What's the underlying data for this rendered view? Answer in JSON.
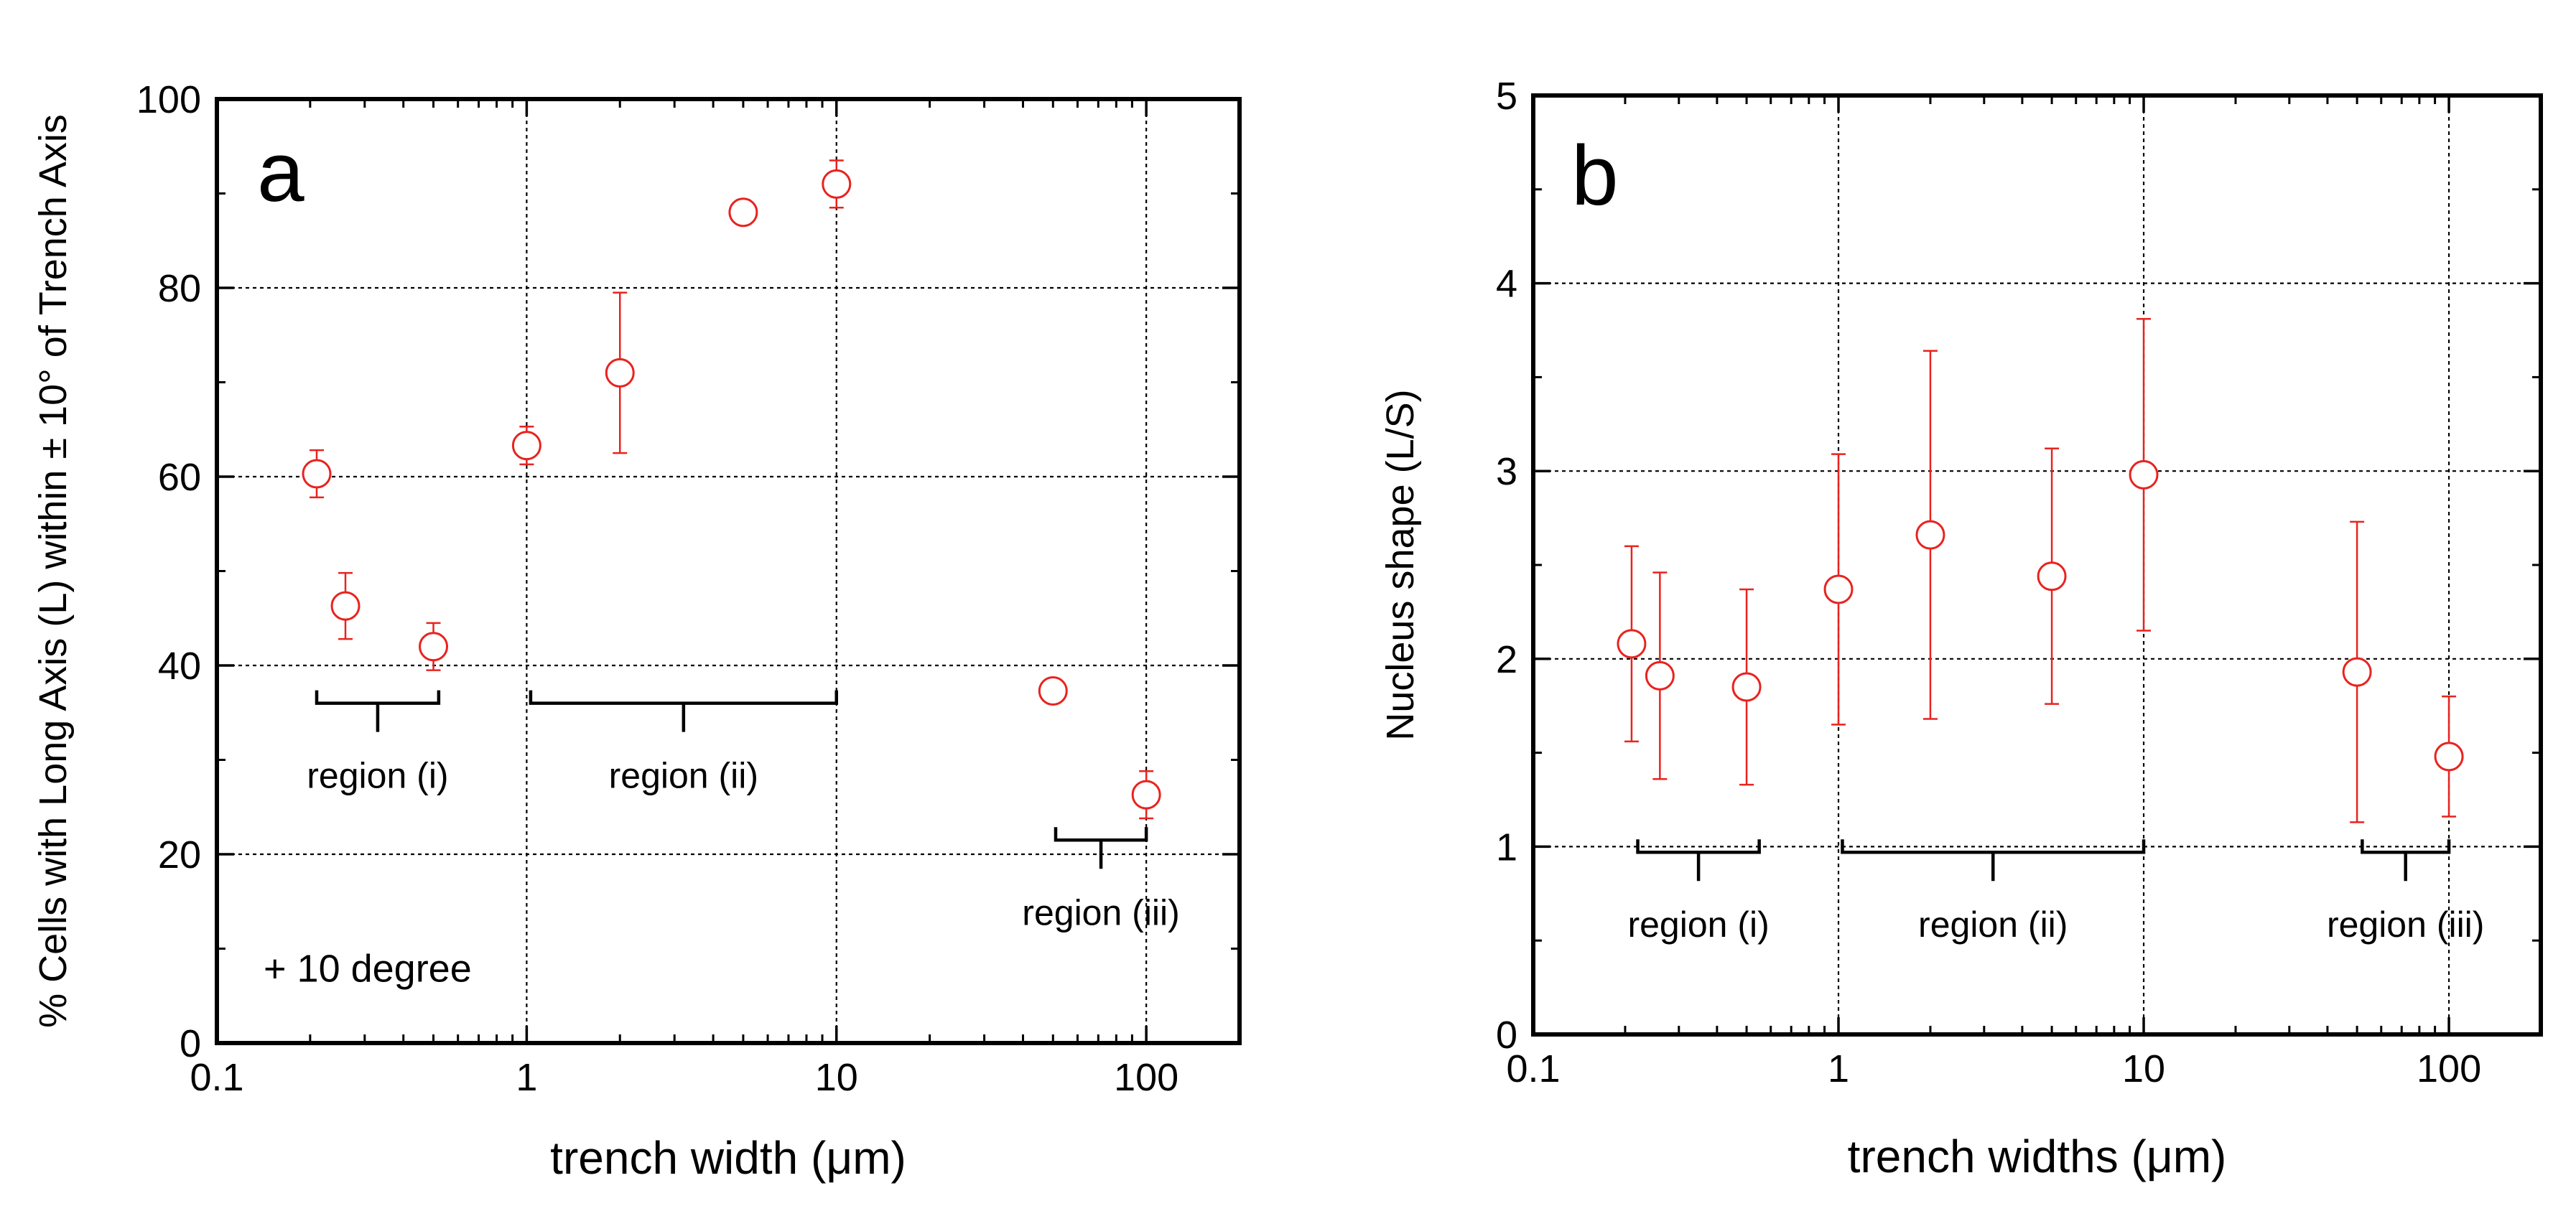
{
  "colors": {
    "marker": "#e8231f",
    "axis": "#000000",
    "grid": "#000000"
  },
  "chart_data": [
    {
      "type": "scatter",
      "panel_label": "a",
      "xscale": "log",
      "xlim": [
        0.1,
        200
      ],
      "ylim": [
        0,
        100
      ],
      "xlabel": "trench width (μm)",
      "ylabel": "% Cells with Long Axis (L) within ± 10° of Trench Axis",
      "xticks": [
        {
          "value": 0.1,
          "label": "0.1"
        },
        {
          "value": 1,
          "label": "1"
        },
        {
          "value": 10,
          "label": "10"
        },
        {
          "value": 100,
          "label": "100"
        }
      ],
      "yticks": [
        {
          "value": 0,
          "label": "0"
        },
        {
          "value": 20,
          "label": "20"
        },
        {
          "value": 40,
          "label": "40"
        },
        {
          "value": 60,
          "label": "60"
        },
        {
          "value": 80,
          "label": "80"
        },
        {
          "value": 100,
          "label": "100"
        }
      ],
      "grid": true,
      "points": [
        {
          "x": 0.21,
          "y": 60.3,
          "err_low": 2.5,
          "err_high": 2.5
        },
        {
          "x": 0.26,
          "y": 46.3,
          "err_low": 3.5,
          "err_high": 3.5
        },
        {
          "x": 0.5,
          "y": 42.0,
          "err_low": 2.5,
          "err_high": 2.5
        },
        {
          "x": 1,
          "y": 63.3,
          "err_low": 2.0,
          "err_high": 2.0
        },
        {
          "x": 2,
          "y": 71.0,
          "err_low": 8.5,
          "err_high": 8.5
        },
        {
          "x": 5,
          "y": 88.0,
          "err_low": 0,
          "err_high": 0
        },
        {
          "x": 10,
          "y": 91.0,
          "err_low": 2.5,
          "err_high": 2.5
        },
        {
          "x": 50,
          "y": 37.3,
          "err_low": 0,
          "err_high": 0
        },
        {
          "x": 100,
          "y": 26.3,
          "err_low": 2.5,
          "err_high": 2.5
        }
      ],
      "regions": [
        {
          "label": "region (i)",
          "x_start": 0.21,
          "x_end": 0.52,
          "y": 36
        },
        {
          "label": "region (ii)",
          "x_start": 1.03,
          "x_end": 10,
          "y": 36
        },
        {
          "label": "region (iii)",
          "x_start": 51,
          "x_end": 100,
          "y": 21.5
        }
      ],
      "annotation": "+ 10 degree"
    },
    {
      "type": "scatter",
      "panel_label": "b",
      "xscale": "log",
      "xlim": [
        0.1,
        200
      ],
      "ylim": [
        0,
        5
      ],
      "xlabel": "trench widths (μm)",
      "ylabel": "Nucleus shape (L/S)",
      "xticks": [
        {
          "value": 0.1,
          "label": "0.1"
        },
        {
          "value": 1,
          "label": "1"
        },
        {
          "value": 10,
          "label": "10"
        },
        {
          "value": 100,
          "label": "100"
        }
      ],
      "yticks": [
        {
          "value": 0,
          "label": "0"
        },
        {
          "value": 1,
          "label": "1"
        },
        {
          "value": 2,
          "label": "2"
        },
        {
          "value": 3,
          "label": "3"
        },
        {
          "value": 4,
          "label": "4"
        },
        {
          "value": 5,
          "label": "5"
        }
      ],
      "grid": true,
      "points": [
        {
          "x": 0.21,
          "y": 2.08,
          "err_low": 0.52,
          "err_high": 0.52
        },
        {
          "x": 0.26,
          "y": 1.91,
          "err_low": 0.55,
          "err_high": 0.55
        },
        {
          "x": 0.5,
          "y": 1.85,
          "err_low": 0.52,
          "err_high": 0.52
        },
        {
          "x": 1,
          "y": 2.37,
          "err_low": 0.72,
          "err_high": 0.72
        },
        {
          "x": 2,
          "y": 2.66,
          "err_low": 0.98,
          "err_high": 0.98
        },
        {
          "x": 5,
          "y": 2.44,
          "err_low": 0.68,
          "err_high": 0.68
        },
        {
          "x": 10,
          "y": 2.98,
          "err_low": 0.83,
          "err_high": 0.83
        },
        {
          "x": 50,
          "y": 1.93,
          "err_low": 0.8,
          "err_high": 0.8
        },
        {
          "x": 100,
          "y": 1.48,
          "err_low": 0.32,
          "err_high": 0.32
        }
      ],
      "regions": [
        {
          "label": "region (i)",
          "x_start": 0.22,
          "x_end": 0.55,
          "y": 0.97
        },
        {
          "label": "region (ii)",
          "x_start": 1.03,
          "x_end": 10,
          "y": 0.97
        },
        {
          "label": "region (iii)",
          "x_start": 52,
          "x_end": 100,
          "y": 0.97
        }
      ]
    }
  ]
}
